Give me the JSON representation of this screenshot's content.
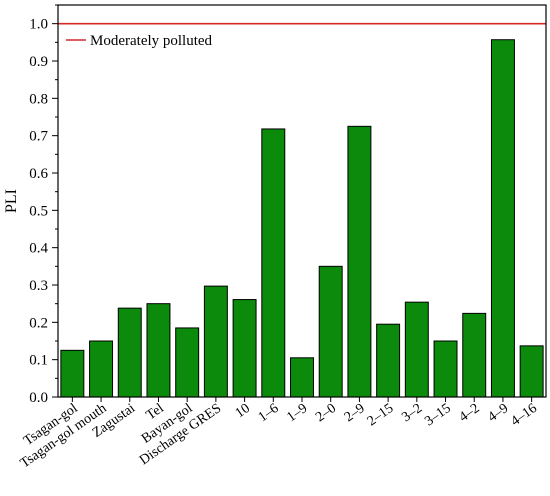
{
  "chart_data": {
    "type": "bar",
    "title": "",
    "xlabel": "",
    "ylabel": "PLI",
    "ylim": [
      0.0,
      1.05
    ],
    "yticks": [
      "0.0",
      "0.1",
      "0.2",
      "0.3",
      "0.4",
      "0.5",
      "0.6",
      "0.7",
      "0.8",
      "0.9",
      "1.0"
    ],
    "grid": false,
    "categories": [
      "Tsagan-gol",
      "Tsagan-gol mouth",
      "Zagustai",
      "Tel",
      "Bayan-gol",
      "Discharge GRES",
      "10",
      "1–6",
      "1–9",
      "2–0",
      "2–9",
      "2–15",
      "3–2",
      "3–15",
      "4–2",
      "4–9",
      "4–16"
    ],
    "values": [
      0.125,
      0.15,
      0.238,
      0.25,
      0.185,
      0.297,
      0.261,
      0.718,
      0.105,
      0.35,
      0.725,
      0.195,
      0.254,
      0.15,
      0.224,
      0.957,
      0.137
    ],
    "bar_color": "#0b8a0b",
    "reference_line": {
      "value": 1.0,
      "label": "Moderately polluted",
      "color": "#d42a2a"
    },
    "legend_position": "top-left"
  }
}
